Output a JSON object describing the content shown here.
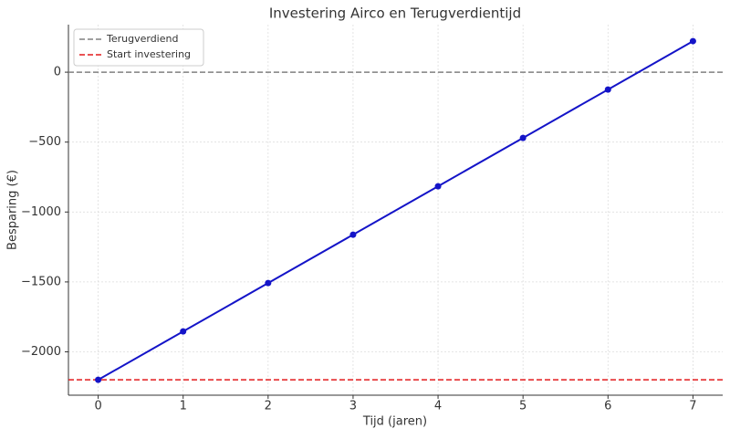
{
  "chart_data": {
    "type": "line",
    "title": "Investering Airco en Terugverdientijd",
    "xlabel": "Tijd (jaren)",
    "ylabel": "Besparing (€)",
    "x": [
      0,
      1,
      2,
      3,
      4,
      5,
      6,
      7
    ],
    "series": [
      {
        "color": "#1414c8",
        "values": [
          -2200,
          -1854,
          -1508,
          -1162,
          -816,
          -470,
          -124,
          222
        ]
      }
    ],
    "hlines": [
      {
        "name": "Terugverdiend",
        "value": 0,
        "color": "#808080"
      },
      {
        "name": "Start investering",
        "value": -2200,
        "color": "#e31a1c"
      }
    ],
    "xlim": [
      -0.35,
      7.35
    ],
    "xticks": [
      0,
      1,
      2,
      3,
      4,
      5,
      6,
      7
    ],
    "ylim": [
      -2310,
      340
    ],
    "yticks": [
      {
        "value": -2000,
        "label": "−2000"
      },
      {
        "value": -1500,
        "label": "−1500"
      },
      {
        "value": -1000,
        "label": "−1000"
      },
      {
        "value": -500,
        "label": "−500"
      },
      0
    ],
    "grid": true,
    "legend": "upper-left"
  }
}
